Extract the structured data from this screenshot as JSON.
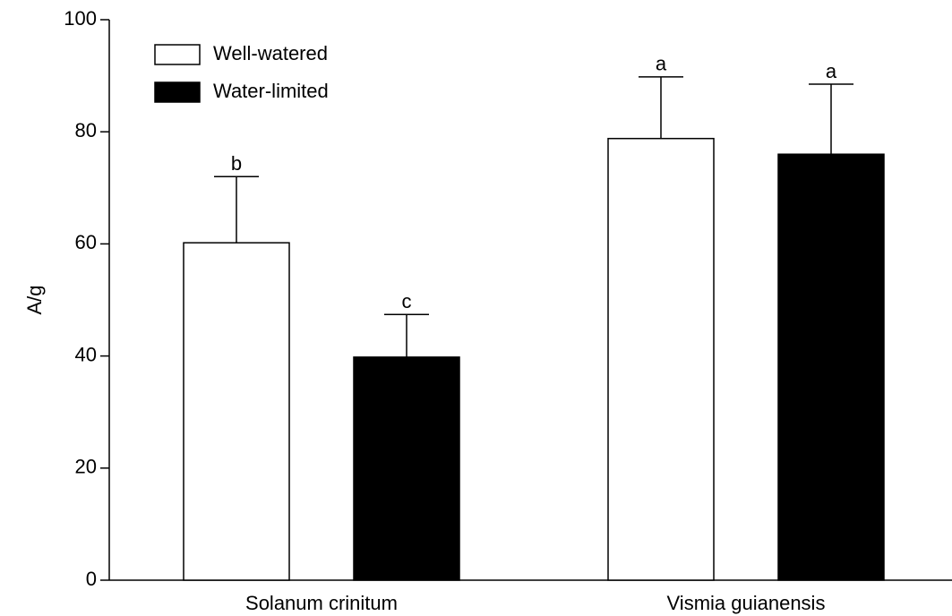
{
  "chart_data": {
    "type": "bar",
    "y_label": "A/g",
    "categories": [
      "Solanum crinitum",
      "Vismia guianensis"
    ],
    "series": [
      {
        "name": "Well-watered",
        "color": "#ffffff",
        "values": [
          60.2,
          78.8
        ],
        "errors": [
          11.8,
          11.0
        ],
        "letters": [
          "b",
          "a"
        ]
      },
      {
        "name": "Water-limited",
        "color": "#000000",
        "values": [
          39.8,
          76.0
        ],
        "errors": [
          7.6,
          12.5
        ],
        "letters": [
          "c",
          "a"
        ]
      }
    ],
    "ylim": [
      0,
      100
    ],
    "yticks": [
      0,
      20,
      40,
      60,
      80,
      100
    ],
    "legend": "upper left"
  }
}
